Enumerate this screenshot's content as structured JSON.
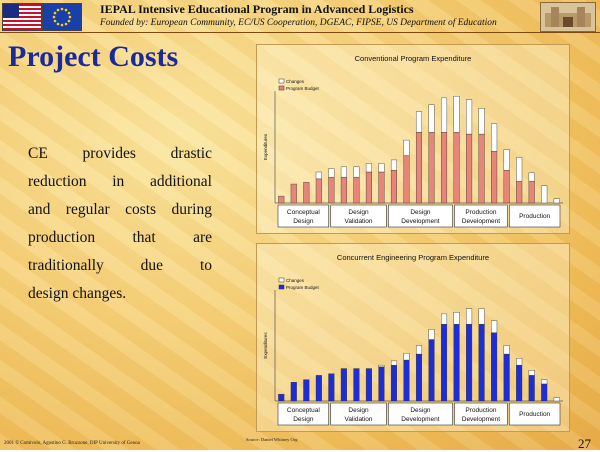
{
  "header": {
    "title": "IEPAL Intensive Educational Program in Advanced Logistics",
    "subtitle": "Founded by: European Community, EC/US Cooperation, DGEAC, FIPSE, US Department of Education"
  },
  "page": {
    "title": "Project Costs",
    "body_lines": [
      [
        "CE",
        "provides",
        "drastic"
      ],
      [
        "reduction",
        "in",
        "additional"
      ],
      [
        "and",
        "regular",
        "costs",
        "during"
      ],
      [
        "production",
        "that",
        "are"
      ],
      [
        "traditionally",
        "due",
        "to"
      ],
      [
        "design changes."
      ]
    ],
    "number": "27"
  },
  "footer": {
    "left": "2001 © Comivolo, Agostino G. Bruzzone, DIP University of Genoa",
    "credit": "Source: Daniel Whitney Org"
  },
  "colors": {
    "conventional_budget": "#e8857a",
    "concurrent_budget": "#1e2ed6",
    "changes": "#ffffff",
    "title_blue": "#1a2a9a"
  },
  "chart_data": [
    {
      "type": "bar",
      "title": "Conventional Program Expenditure",
      "ylabel": "Expenditures",
      "legend": [
        "Changes",
        "Program Budget"
      ],
      "legend_position": "top-left",
      "stacked": true,
      "phases": [
        "Conceptual Design",
        "Design Validation",
        "Design Development",
        "Production Development",
        "Production"
      ],
      "series": [
        {
          "name": "Program Budget",
          "values": [
            8,
            22,
            24,
            28,
            30,
            30,
            30,
            36,
            36,
            38,
            55,
            82,
            82,
            82,
            82,
            80,
            80,
            60,
            38,
            25,
            25,
            0,
            0
          ]
        },
        {
          "name": "Changes",
          "values": [
            0,
            0,
            0,
            8,
            10,
            12,
            12,
            10,
            10,
            12,
            18,
            24,
            32,
            40,
            42,
            40,
            30,
            32,
            24,
            28,
            10,
            20,
            5
          ]
        }
      ],
      "ylim": [
        0,
        130
      ]
    },
    {
      "type": "bar",
      "title": "Concurrent Engineering Program Expenditure",
      "ylabel": "Expenditures",
      "legend": [
        "Changes",
        "Program Budget"
      ],
      "legend_position": "top-left",
      "stacked": true,
      "phases": [
        "Conceptual Design",
        "Design Validation",
        "Design Development",
        "Production Development",
        "Production"
      ],
      "series": [
        {
          "name": "Program Budget",
          "values": [
            8,
            22,
            25,
            30,
            32,
            38,
            38,
            38,
            40,
            42,
            48,
            55,
            72,
            90,
            90,
            90,
            90,
            80,
            55,
            42,
            30,
            20,
            0
          ]
        },
        {
          "name": "Changes",
          "values": [
            0,
            0,
            0,
            0,
            0,
            0,
            0,
            0,
            2,
            5,
            8,
            10,
            12,
            12,
            14,
            18,
            18,
            14,
            10,
            8,
            6,
            5,
            4
          ]
        }
      ],
      "ylim": [
        0,
        130
      ]
    }
  ]
}
